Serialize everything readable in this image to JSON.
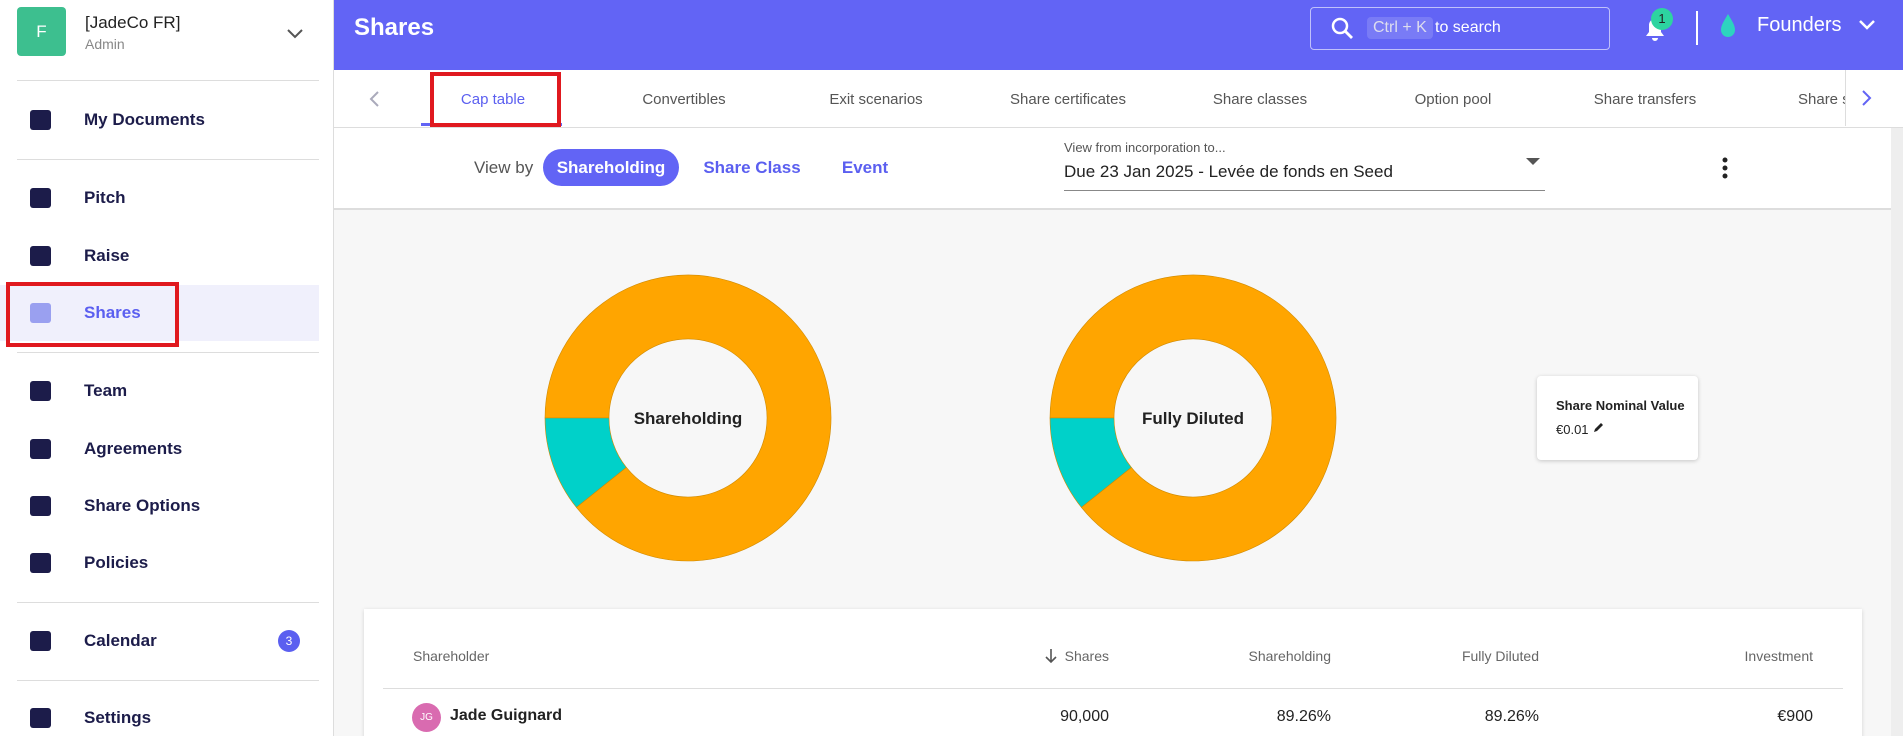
{
  "sidebar": {
    "avatar": "F",
    "company": "[JadeCo FR]",
    "role": "Admin",
    "items": [
      {
        "label": "My Documents"
      },
      {
        "label": "Pitch"
      },
      {
        "label": "Raise"
      },
      {
        "label": "Shares"
      },
      {
        "label": "Team"
      },
      {
        "label": "Agreements"
      },
      {
        "label": "Share Options"
      },
      {
        "label": "Policies"
      },
      {
        "label": "Calendar",
        "badge": 3
      },
      {
        "label": "Settings"
      }
    ]
  },
  "header": {
    "title": "Shares",
    "search_shortcut": "Ctrl + K",
    "search_text": "to search",
    "notifications": 1,
    "workspace": "Founders"
  },
  "tabs": [
    "Cap table",
    "Convertibles",
    "Exit scenarios",
    "Share certificates",
    "Share classes",
    "Option pool",
    "Share transfers",
    "Share s"
  ],
  "view_by": {
    "label": "View by",
    "options": [
      "Shareholding",
      "Share Class",
      "Event"
    ]
  },
  "timeline": {
    "label": "View from incorporation to...",
    "value": "Due 23 Jan 2025 - Levée de fonds en Seed"
  },
  "donuts": [
    {
      "label": "Shareholding",
      "segments": [
        {
          "color": "#ffa500",
          "value": 89.26
        },
        {
          "color": "#00d1c9",
          "value": 10.74
        }
      ]
    },
    {
      "label": "Fully Diluted",
      "segments": [
        {
          "color": "#ffa500",
          "value": 89.26
        },
        {
          "color": "#00d1c9",
          "value": 10.74
        }
      ]
    }
  ],
  "nominal_card": {
    "title": "Share Nominal Value",
    "value": "€0.01"
  },
  "table": {
    "columns": [
      "Shareholder",
      "Shares",
      "Shareholding",
      "Fully Diluted",
      "Investment"
    ],
    "rows": [
      {
        "initials": "JG",
        "name": "Jade Guignard",
        "cells": [
          "90,000",
          "89.26%",
          "89.26%",
          "€900"
        ]
      }
    ]
  }
}
